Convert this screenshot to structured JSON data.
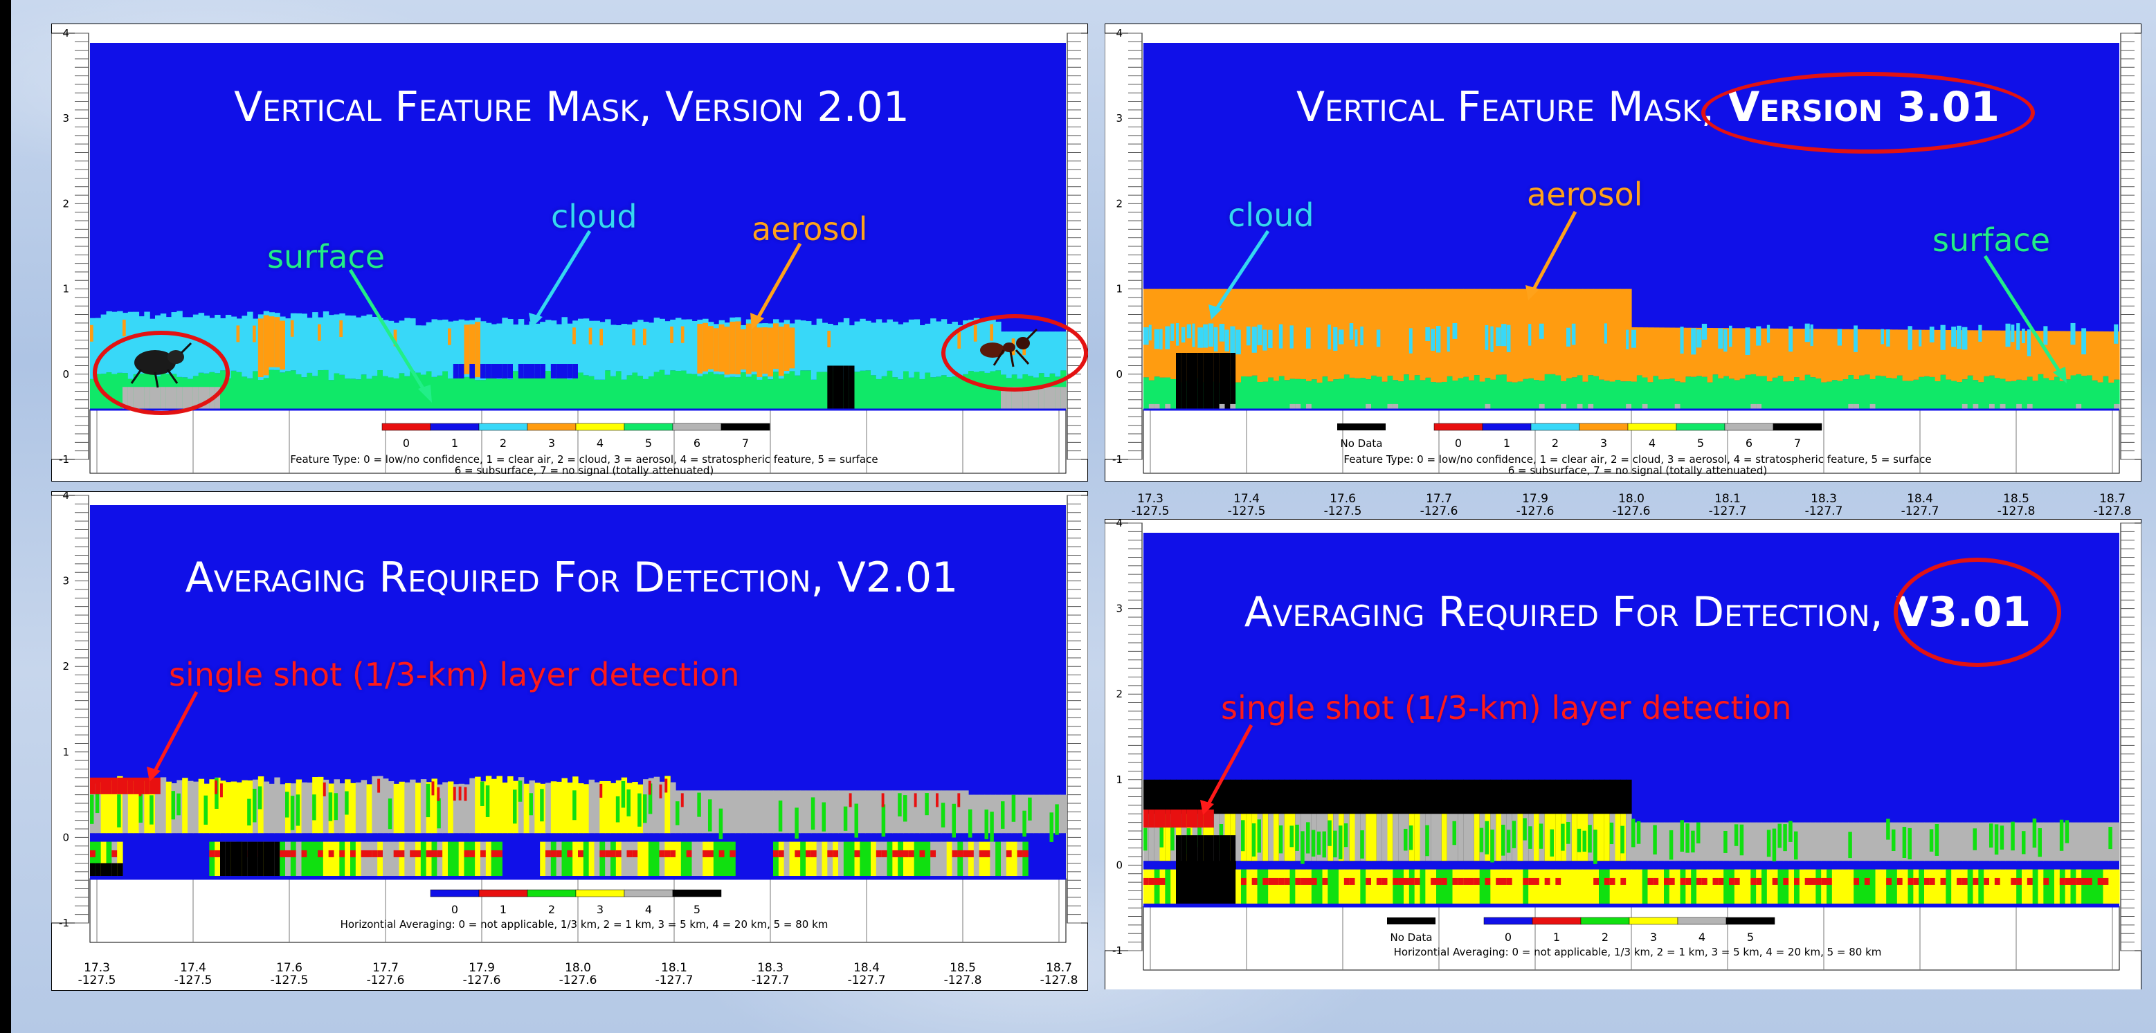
{
  "panels": [
    {
      "id": "tl",
      "title": "Vertical Feature Mask, Version 2.01",
      "title_main": "Vertical Feature Mask, Version 2.01",
      "title_bold": "",
      "annotations": [
        {
          "text": "surface",
          "color": "#22ee88"
        },
        {
          "text": "cloud",
          "color": "#35d8f0"
        },
        {
          "text": "aerosol",
          "color": "#ffa21a"
        }
      ],
      "colorbar": {
        "labels": [
          "0",
          "1",
          "2",
          "3",
          "4",
          "5",
          "6",
          "7"
        ],
        "colors": [
          "#e81010",
          "#1010e8",
          "#38d8f8",
          "#ff9c10",
          "#ffff00",
          "#10e868",
          "#b4b4b4",
          "#000000"
        ],
        "no_data": ""
      },
      "caption": [
        "Feature Type: 0 = low/no confidence, 1 = clear air, 2 = cloud, 3 = aerosol, 4 = stratospheric feature, 5 = surface",
        "6 = subsurface, 7 = no signal (totally attenuated)"
      ]
    },
    {
      "id": "tr",
      "title": "Vertical Feature Mask, Version 3.01",
      "title_main": "Vertical Feature Mask, ",
      "title_bold": "Version 3.01",
      "annotations": [
        {
          "text": "cloud",
          "color": "#35d8f0"
        },
        {
          "text": "aerosol",
          "color": "#ffa21a"
        },
        {
          "text": "surface",
          "color": "#22ee88"
        }
      ],
      "colorbar": {
        "labels": [
          "0",
          "1",
          "2",
          "3",
          "4",
          "5",
          "6",
          "7"
        ],
        "colors": [
          "#e81010",
          "#1010e8",
          "#38d8f8",
          "#ff9c10",
          "#ffff00",
          "#10e868",
          "#b4b4b4",
          "#000000"
        ],
        "no_data": "No Data"
      },
      "caption": [
        "Feature Type: 0 = low/no confidence, 1 = clear air, 2 = cloud, 3 = aerosol, 4 = stratospheric feature, 5 = surface",
        "6 = subsurface, 7 = no signal (totally attenuated)"
      ]
    },
    {
      "id": "bl",
      "title": "Averaging Required For Detection, V2.01",
      "title_main": "Averaging Required For Detection, V2.01",
      "title_bold": "",
      "annotations": [
        {
          "text": "single shot (1/3-km) layer detection",
          "color": "#ff1a1a"
        }
      ],
      "colorbar": {
        "labels": [
          "0",
          "1",
          "2",
          "3",
          "4",
          "5"
        ],
        "colors": [
          "#1010e8",
          "#e81010",
          "#10e010",
          "#ffff00",
          "#b4b4b4",
          "#000000"
        ],
        "no_data": ""
      },
      "caption": [
        "Horizontial Averaging: 0 = not applicable, 1/3 km, 2 = 1 km, 3 = 5 km, 4 = 20 km, 5 = 80 km"
      ]
    },
    {
      "id": "br",
      "title": "Averaging Required For Detection, V3.01",
      "title_main": "Averaging Required For Detection, ",
      "title_bold": "V3.01",
      "annotations": [
        {
          "text": "single shot (1/3-km) layer detection",
          "color": "#ff1a1a"
        }
      ],
      "colorbar": {
        "labels": [
          "0",
          "1",
          "2",
          "3",
          "4",
          "5"
        ],
        "colors": [
          "#1010e8",
          "#e81010",
          "#10e010",
          "#ffff00",
          "#b4b4b4",
          "#000000"
        ],
        "no_data": "No Data"
      },
      "caption": [
        "Horizontial Averaging: 0 = not applicable, 1/3 km, 2 = 1 km, 3 = 5 km, 4 = 20 km, 5 = 80 km"
      ]
    }
  ],
  "chart_data": [
    {
      "type": "heatmap",
      "title": "Vertical Feature Mask, Version 2.01",
      "ylim": [
        -1,
        4
      ],
      "yticks": [
        "-1",
        "0",
        "1",
        "2",
        "3",
        "4"
      ],
      "xticks": [
        [
          "17.3",
          "-127.5"
        ],
        [
          "17.4",
          "-127.5"
        ],
        [
          "17.6",
          "-127.5"
        ],
        [
          "17.7",
          "-127.6"
        ],
        [
          "17.9",
          "-127.6"
        ],
        [
          "18.0",
          "-127.6"
        ],
        [
          "18.1",
          "-127.7"
        ],
        [
          "18.3",
          "-127.7"
        ],
        [
          "18.4",
          "-127.7"
        ],
        [
          "18.5",
          "-127.8"
        ],
        [
          "18.7",
          "-127.8"
        ]
      ]
    },
    {
      "type": "heatmap",
      "title": "Vertical Feature Mask, Version 3.01",
      "ylim": [
        -1,
        4
      ],
      "yticks": [
        "-1",
        "0",
        "1",
        "2",
        "3",
        "4"
      ],
      "xticks": [
        [
          "17.3",
          "-127.5"
        ],
        [
          "17.4",
          "-127.5"
        ],
        [
          "17.6",
          "-127.5"
        ],
        [
          "17.7",
          "-127.6"
        ],
        [
          "17.9",
          "-127.6"
        ],
        [
          "18.0",
          "-127.6"
        ],
        [
          "18.1",
          "-127.7"
        ],
        [
          "18.3",
          "-127.7"
        ],
        [
          "18.4",
          "-127.7"
        ],
        [
          "18.5",
          "-127.8"
        ],
        [
          "18.7",
          "-127.8"
        ]
      ]
    },
    {
      "type": "heatmap",
      "title": "Averaging Required For Detection, V2.01",
      "ylim": [
        -1,
        4
      ],
      "yticks": [
        "-1",
        "0",
        "1",
        "2",
        "3",
        "4"
      ],
      "xticks": [
        [
          "17.3",
          "-127.5"
        ],
        [
          "17.4",
          "-127.5"
        ],
        [
          "17.6",
          "-127.5"
        ],
        [
          "17.7",
          "-127.6"
        ],
        [
          "17.9",
          "-127.6"
        ],
        [
          "18.0",
          "-127.6"
        ],
        [
          "18.1",
          "-127.7"
        ],
        [
          "18.3",
          "-127.7"
        ],
        [
          "18.4",
          "-127.7"
        ],
        [
          "18.5",
          "-127.8"
        ],
        [
          "18.7",
          "-127.8"
        ]
      ]
    },
    {
      "type": "heatmap",
      "title": "Averaging Required For Detection, V3.01",
      "ylim": [
        -1,
        4
      ],
      "yticks": [
        "-1",
        "0",
        "1",
        "2",
        "3",
        "4"
      ],
      "xticks": [
        [
          "17.3",
          "-127.5"
        ],
        [
          "17.4",
          "-127.5"
        ],
        [
          "17.6",
          "-127.5"
        ],
        [
          "17.7",
          "-127.6"
        ],
        [
          "17.9",
          "-127.6"
        ],
        [
          "18.0",
          "-127.6"
        ],
        [
          "18.1",
          "-127.7"
        ],
        [
          "18.3",
          "-127.7"
        ],
        [
          "18.4",
          "-127.7"
        ],
        [
          "18.5",
          "-127.8"
        ],
        [
          "18.7",
          "-127.8"
        ]
      ]
    }
  ]
}
